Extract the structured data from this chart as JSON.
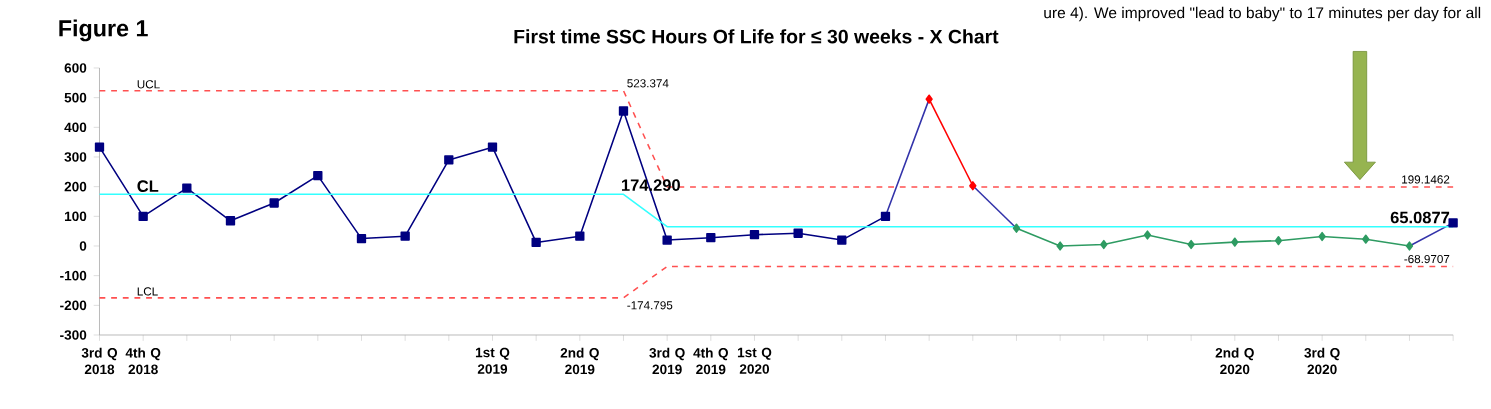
{
  "chart_data": {
    "type": "line",
    "title": "First time SSC Hours Of Life for ≤ 30 weeks  - X Chart",
    "annotations": [
      "Figure 1",
      "ure 4). We improved \"lead to baby\" to 17 minutes per day for all"
    ],
    "categories": [
      "3rd Q 2018",
      "4th Q 2018",
      null,
      null,
      null,
      null,
      null,
      null,
      null,
      "1st Q 2019",
      null,
      "2nd Q 2019",
      null,
      "3rd Q 2019",
      "4th Q 2019",
      "1st Q 2020",
      null,
      null,
      null,
      null,
      null,
      null,
      null,
      null,
      null,
      null,
      "2nd Q 2020",
      null,
      "3rd Q 2020",
      null,
      null,
      null
    ],
    "ylim": [
      -300,
      600
    ],
    "yticks": [
      -300,
      -200,
      -100,
      0,
      100,
      200,
      300,
      400,
      500,
      600
    ],
    "series": [
      {
        "color": "#000080",
        "marker": "square",
        "values": [
          333,
          100,
          195,
          85,
          145,
          237,
          25,
          33,
          290,
          333,
          12,
          33,
          455,
          20,
          28,
          38,
          43,
          20,
          100,
          null,
          null,
          null,
          null,
          null,
          null,
          null,
          null,
          null,
          null,
          null,
          null,
          78
        ]
      },
      {
        "color": "#3333aa",
        "marker": "none",
        "values": [
          null,
          null,
          null,
          null,
          null,
          null,
          null,
          null,
          null,
          null,
          null,
          null,
          null,
          null,
          null,
          null,
          null,
          null,
          100,
          495,
          null,
          null,
          null,
          null,
          null,
          null,
          null,
          null,
          null,
          null,
          0,
          78
        ]
      },
      {
        "color": "#3333aa",
        "marker": "none",
        "values": [
          null,
          null,
          null,
          null,
          null,
          null,
          null,
          null,
          null,
          null,
          null,
          null,
          null,
          null,
          null,
          null,
          null,
          null,
          null,
          null,
          203,
          60,
          null,
          null,
          null,
          null,
          null,
          null,
          null,
          null,
          null,
          null
        ]
      },
      {
        "color": "#ff0000",
        "marker": "diamond",
        "values": [
          null,
          null,
          null,
          null,
          null,
          null,
          null,
          null,
          null,
          null,
          null,
          null,
          null,
          null,
          null,
          null,
          null,
          null,
          null,
          495,
          203,
          null,
          null,
          null,
          null,
          null,
          null,
          null,
          null,
          null,
          null,
          null
        ]
      },
      {
        "color": "#2e9b62",
        "marker": "diamond",
        "values": [
          null,
          null,
          null,
          null,
          null,
          null,
          null,
          null,
          null,
          null,
          null,
          null,
          null,
          null,
          null,
          null,
          null,
          null,
          null,
          null,
          null,
          60,
          0,
          5,
          37,
          5,
          13,
          18,
          32,
          23,
          0,
          null
        ]
      },
      {
        "name": "UCL",
        "color": "#ff5050",
        "marker": "none",
        "line_style": "dashed",
        "values": [
          523.374,
          523.374,
          523.374,
          523.374,
          523.374,
          523.374,
          523.374,
          523.374,
          523.374,
          523.374,
          523.374,
          523.374,
          523.374,
          199.1462,
          199.1462,
          199.1462,
          199.1462,
          199.1462,
          199.1462,
          199.1462,
          199.1462,
          199.1462,
          199.1462,
          199.1462,
          199.1462,
          199.1462,
          199.1462,
          199.1462,
          199.1462,
          199.1462,
          199.1462,
          199.1462
        ],
        "value_labels": [
          null,
          null,
          null,
          null,
          null,
          null,
          null,
          null,
          null,
          null,
          null,
          null,
          "523.374",
          null,
          null,
          null,
          null,
          null,
          null,
          null,
          null,
          null,
          null,
          null,
          null,
          null,
          null,
          null,
          null,
          null,
          null,
          "199.1462"
        ]
      },
      {
        "name": "CL",
        "color": "#33ffff",
        "marker": "none",
        "line_style": "solid",
        "values": [
          174.29,
          174.29,
          174.29,
          174.29,
          174.29,
          174.29,
          174.29,
          174.29,
          174.29,
          174.29,
          174.29,
          174.29,
          174.29,
          65.0877,
          65.0877,
          65.0877,
          65.0877,
          65.0877,
          65.0877,
          65.0877,
          65.0877,
          65.0877,
          65.0877,
          65.0877,
          65.0877,
          65.0877,
          65.0877,
          65.0877,
          65.0877,
          65.0877,
          65.0877,
          65.0877
        ],
        "value_labels": [
          null,
          null,
          null,
          null,
          null,
          null,
          null,
          null,
          null,
          null,
          null,
          null,
          "174.290",
          null,
          null,
          null,
          null,
          null,
          null,
          null,
          null,
          null,
          null,
          null,
          null,
          null,
          null,
          null,
          null,
          null,
          null,
          "65.0877"
        ]
      },
      {
        "name": "LCL",
        "color": "#ff5050",
        "marker": "none",
        "line_style": "dashed",
        "values": [
          -174.795,
          -174.795,
          -174.795,
          -174.795,
          -174.795,
          -174.795,
          -174.795,
          -174.795,
          -174.795,
          -174.795,
          -174.795,
          -174.795,
          -174.795,
          -68.9707,
          -68.9707,
          -68.9707,
          -68.9707,
          -68.9707,
          -68.9707,
          -68.9707,
          -68.9707,
          -68.9707,
          -68.9707,
          -68.9707,
          -68.9707,
          -68.9707,
          -68.9707,
          -68.9707,
          -68.9707,
          -68.9707,
          -68.9707,
          -68.9707
        ],
        "value_labels": [
          null,
          null,
          null,
          null,
          null,
          null,
          null,
          null,
          null,
          null,
          null,
          null,
          "-174.795",
          null,
          null,
          null,
          null,
          null,
          null,
          null,
          null,
          null,
          null,
          null,
          null,
          null,
          null,
          null,
          null,
          null,
          null,
          "-68.9707"
        ]
      }
    ]
  }
}
